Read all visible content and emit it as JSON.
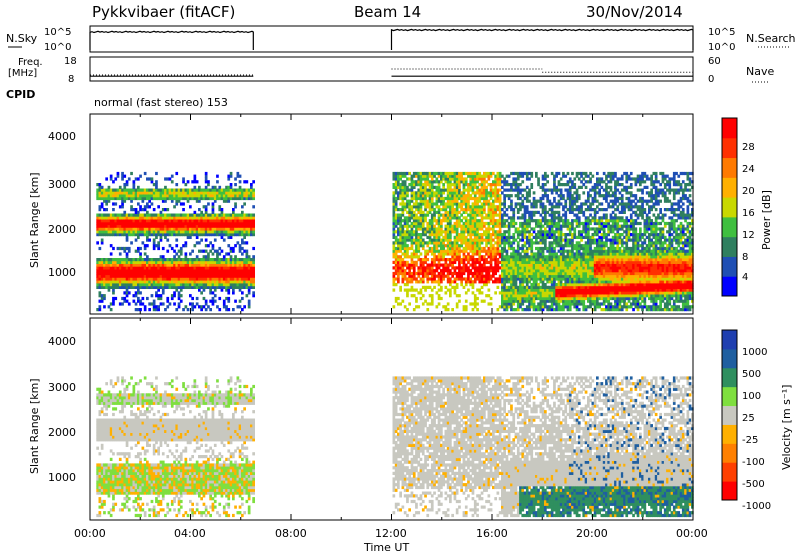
{
  "header": {
    "title": "Pykkvibaer (fitACF)",
    "beam": "Beam 14",
    "date": "30/Nov/2014"
  },
  "side_labels": {
    "nsky": "N.Sky",
    "nsearch": "N.Search",
    "freq_line1": "Freq.",
    "freq_line2": "[MHz]",
    "nave": "Nave",
    "cpid": "CPID"
  },
  "cpid_text": "normal (fast stereo) 153",
  "colors": {
    "power": [
      "#0000ff",
      "#1f4fb4",
      "#2f7f5f",
      "#3fbf3f",
      "#c8d800",
      "#ffb000",
      "#ff7a00",
      "#ff3000",
      "#ff0000"
    ],
    "velocity": [
      "#ff0000",
      "#ff4000",
      "#ff8000",
      "#ffb000",
      "#c8c8c0",
      "#7fdf3f",
      "#2f8f5f",
      "#1f5fa0",
      "#1f3fb0"
    ]
  },
  "chart_data": [
    {
      "type": "line",
      "name": "nsky-nsearch",
      "ylabel_left": [
        "10^5",
        "10^0"
      ],
      "ylabel_right": [
        "10^5",
        "10^0"
      ],
      "segments": [
        {
          "x": [
            "00:00",
            "06:30"
          ],
          "level": "10^5"
        },
        {
          "x": [
            "12:00",
            "24:00"
          ],
          "level": "10^5"
        }
      ]
    },
    {
      "type": "line",
      "name": "freq-nave",
      "ylim_left": [
        8,
        18
      ],
      "yticks_left": [
        "18",
        "8"
      ],
      "ylim_right": [
        0,
        60
      ],
      "yticks_right": [
        "60",
        "0"
      ],
      "freq_segments": [
        {
          "x": [
            "00:00",
            "06:30"
          ],
          "value": 10
        },
        {
          "x": [
            "12:00",
            "18:00"
          ],
          "value": 10
        },
        {
          "x": [
            "18:00",
            "24:00"
          ],
          "value": 10
        }
      ],
      "nave_segments": [
        {
          "x": [
            "00:00",
            "06:30"
          ],
          "value": 15
        },
        {
          "x": [
            "12:00",
            "18:00"
          ],
          "value": 30
        },
        {
          "x": [
            "18:00",
            "24:00"
          ],
          "value": 22
        }
      ]
    },
    {
      "type": "heatmap",
      "name": "power",
      "ylabel": "Slant Range [km]",
      "yticks": [
        "4000",
        "3000",
        "2000",
        "1000"
      ],
      "ylim": [
        180,
        4500
      ],
      "colorbar_label": "Power [dB]",
      "colorbar_ticks": [
        "28",
        "24",
        "20",
        "16",
        "12",
        "8",
        "4"
      ],
      "colorbar_range": [
        0,
        32
      ]
    },
    {
      "type": "heatmap",
      "name": "velocity",
      "ylabel": "Slant Range [km]",
      "yticks": [
        "4000",
        "3000",
        "2000",
        "1000"
      ],
      "ylim": [
        180,
        4500
      ],
      "colorbar_label": "Velocity [m s⁻¹]",
      "colorbar_ticks": [
        "1000",
        "500",
        "100",
        "25",
        "-25",
        "-100",
        "-500",
        "-1000"
      ]
    }
  ],
  "xaxis": {
    "ticks": [
      "00:00",
      "04:00",
      "08:00",
      "12:00",
      "16:00",
      "20:00",
      "00:00"
    ],
    "label": "Time UT"
  }
}
